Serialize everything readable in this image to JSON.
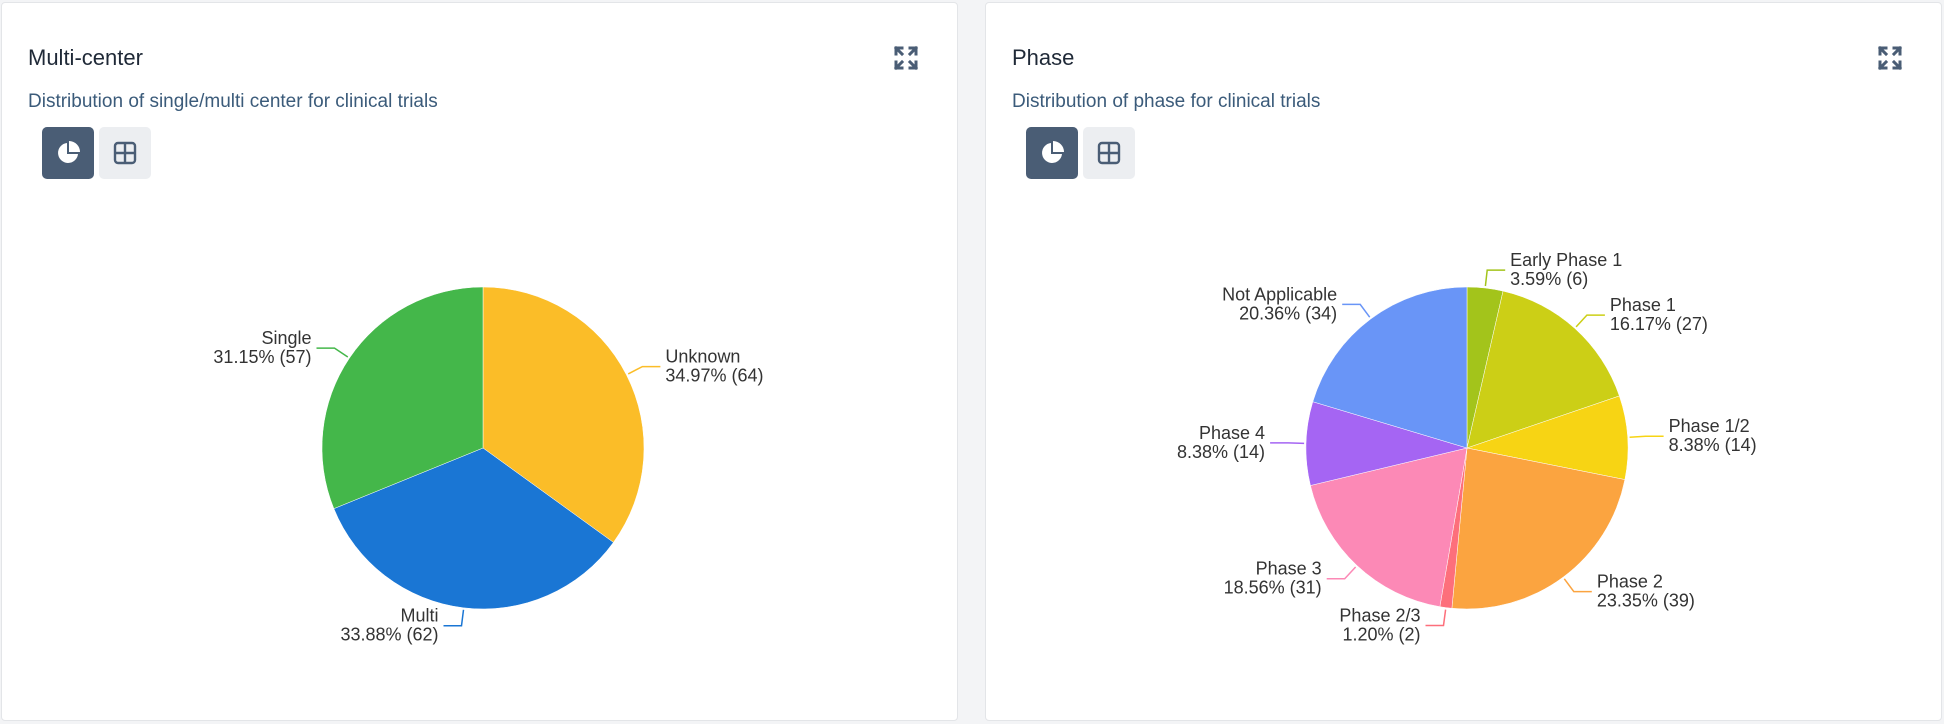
{
  "colors": {
    "accent": "#4a5d75",
    "subtitle": "#3b5b7a"
  },
  "cards": [
    {
      "title": "Multi-center",
      "subtitle": "Distribution of single/multi center for clinical trials",
      "expand_icon": "expand-icon",
      "toggles": [
        {
          "icon": "pie-chart-icon",
          "active": true
        },
        {
          "icon": "table-icon",
          "active": false
        }
      ]
    },
    {
      "title": "Phase",
      "subtitle": "Distribution of phase for clinical trials",
      "expand_icon": "expand-icon",
      "toggles": [
        {
          "icon": "pie-chart-icon",
          "active": true
        },
        {
          "icon": "table-icon",
          "active": false
        }
      ]
    }
  ],
  "chart_data": [
    {
      "type": "pie",
      "title": "Multi-center",
      "slices": [
        {
          "label": "Unknown",
          "value": 64,
          "percent": "34.97%",
          "color": "#fbbd28"
        },
        {
          "label": "Multi",
          "value": 62,
          "percent": "33.88%",
          "color": "#1a76d4"
        },
        {
          "label": "Single",
          "value": 57,
          "percent": "31.15%",
          "color": "#44b74a"
        }
      ]
    },
    {
      "type": "pie",
      "title": "Phase",
      "slices": [
        {
          "label": "Early Phase 1",
          "value": 6,
          "percent": "3.59%",
          "color": "#a3c41b"
        },
        {
          "label": "Phase 1",
          "value": 27,
          "percent": "16.17%",
          "color": "#cccf16"
        },
        {
          "label": "Phase 1/2",
          "value": 14,
          "percent": "8.38%",
          "color": "#f7d414"
        },
        {
          "label": "Phase 2",
          "value": 39,
          "percent": "23.35%",
          "color": "#fba440"
        },
        {
          "label": "Phase 2/3",
          "value": 2,
          "percent": "1.20%",
          "color": "#fd6f7b"
        },
        {
          "label": "Phase 3",
          "value": 31,
          "percent": "18.56%",
          "color": "#fc89b6"
        },
        {
          "label": "Phase 4",
          "value": 14,
          "percent": "8.38%",
          "color": "#a565f3"
        },
        {
          "label": "Not Applicable",
          "value": 34,
          "percent": "20.36%",
          "color": "#6995f7"
        }
      ]
    }
  ]
}
